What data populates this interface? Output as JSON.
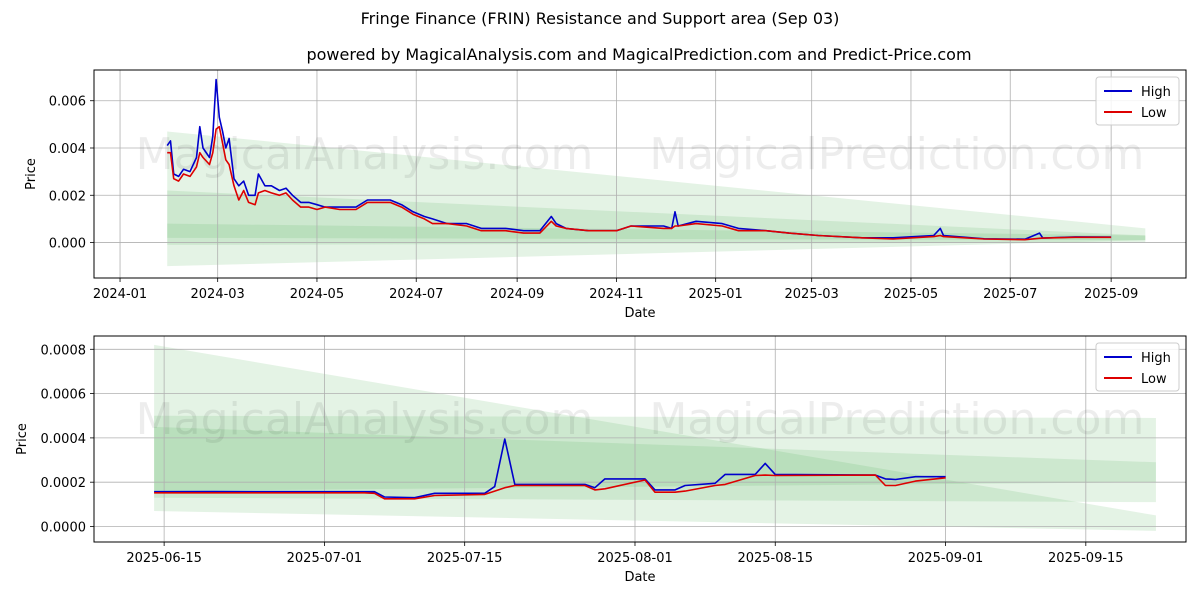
{
  "title": "Fringe Finance (FRIN) Resistance and Support area (Sep 03)",
  "subtitle": "powered by MagicalAnalysis.com and MagicalPrediction.com and Predict-Price.com",
  "watermark": "MagicalAnalysis.com    MagicalPrediction.com",
  "colors": {
    "high": "#0000cc",
    "low": "#dd0000",
    "band": "#4caf50"
  },
  "chart_data": [
    {
      "type": "line",
      "xlabel": "Date",
      "ylabel": "Price",
      "x_tick_labels": [
        "2024-01",
        "2024-03",
        "2024-05",
        "2024-07",
        "2024-09",
        "2024-11",
        "2025-01",
        "2025-03",
        "2025-05",
        "2025-07",
        "2025-09"
      ],
      "y_tick_labels": [
        "0.000",
        "0.002",
        "0.004",
        "0.006"
      ],
      "xlim": [
        "2023-12-16",
        "2025-10-17"
      ],
      "ylim": [
        -0.0015,
        0.0073
      ],
      "legend": {
        "position": "top-right",
        "entries": [
          "High",
          "Low"
        ]
      },
      "grid": true,
      "series": [
        {
          "name": "High",
          "color": "#0000cc",
          "points": [
            [
              "2024-01-30",
              0.0041
            ],
            [
              "2024-02-01",
              0.0043
            ],
            [
              "2024-02-03",
              0.0029
            ],
            [
              "2024-02-06",
              0.0028
            ],
            [
              "2024-02-09",
              0.0031
            ],
            [
              "2024-02-13",
              0.003
            ],
            [
              "2024-02-17",
              0.0036
            ],
            [
              "2024-02-19",
              0.0049
            ],
            [
              "2024-02-21",
              0.004
            ],
            [
              "2024-02-25",
              0.0036
            ],
            [
              "2024-02-27",
              0.0045
            ],
            [
              "2024-02-29",
              0.0069
            ],
            [
              "2024-03-02",
              0.0053
            ],
            [
              "2024-03-04",
              0.0047
            ],
            [
              "2024-03-06",
              0.004
            ],
            [
              "2024-03-08",
              0.0044
            ],
            [
              "2024-03-11",
              0.0027
            ],
            [
              "2024-03-14",
              0.0024
            ],
            [
              "2024-03-17",
              0.0026
            ],
            [
              "2024-03-20",
              0.002
            ],
            [
              "2024-03-24",
              0.002
            ],
            [
              "2024-03-26",
              0.0029
            ],
            [
              "2024-03-30",
              0.0024
            ],
            [
              "2024-04-03",
              0.0024
            ],
            [
              "2024-04-08",
              0.0022
            ],
            [
              "2024-04-12",
              0.0023
            ],
            [
              "2024-04-16",
              0.002
            ],
            [
              "2024-04-21",
              0.0017
            ],
            [
              "2024-04-26",
              0.0017
            ],
            [
              "2024-05-01",
              0.0016
            ],
            [
              "2024-05-06",
              0.0015
            ],
            [
              "2024-05-15",
              0.0015
            ],
            [
              "2024-05-25",
              0.0015
            ],
            [
              "2024-06-01",
              0.0018
            ],
            [
              "2024-06-15",
              0.0018
            ],
            [
              "2024-06-22",
              0.0016
            ],
            [
              "2024-06-29",
              0.0013
            ],
            [
              "2024-07-06",
              0.0011
            ],
            [
              "2024-07-11",
              0.001
            ],
            [
              "2024-07-20",
              0.0008
            ],
            [
              "2024-08-01",
              0.0008
            ],
            [
              "2024-08-10",
              0.0006
            ],
            [
              "2024-08-25",
              0.0006
            ],
            [
              "2024-09-05",
              0.0005
            ],
            [
              "2024-09-15",
              0.0005
            ],
            [
              "2024-09-22",
              0.0011
            ],
            [
              "2024-09-25",
              0.0008
            ],
            [
              "2024-10-01",
              0.0006
            ],
            [
              "2024-10-15",
              0.0005
            ],
            [
              "2024-11-01",
              0.0005
            ],
            [
              "2024-11-10",
              0.0007
            ],
            [
              "2024-11-30",
              0.0007
            ],
            [
              "2024-12-05",
              0.0006
            ],
            [
              "2024-12-07",
              0.0013
            ],
            [
              "2024-12-09",
              0.0007
            ],
            [
              "2024-12-20",
              0.0009
            ],
            [
              "2025-01-05",
              0.0008
            ],
            [
              "2025-01-15",
              0.0006
            ],
            [
              "2025-02-01",
              0.0005
            ],
            [
              "2025-02-15",
              0.0004
            ],
            [
              "2025-03-05",
              0.0003
            ],
            [
              "2025-04-01",
              0.0002
            ],
            [
              "2025-04-20",
              0.0002
            ],
            [
              "2025-05-15",
              0.0003
            ],
            [
              "2025-05-19",
              0.0006
            ],
            [
              "2025-05-21",
              0.0003
            ],
            [
              "2025-06-15",
              0.00016
            ],
            [
              "2025-07-10",
              0.00014
            ],
            [
              "2025-07-19",
              0.0004
            ],
            [
              "2025-07-21",
              0.00019
            ],
            [
              "2025-08-10",
              0.00024
            ],
            [
              "2025-09-01",
              0.00023
            ]
          ]
        },
        {
          "name": "Low",
          "color": "#dd0000",
          "points": [
            [
              "2024-01-30",
              0.0038
            ],
            [
              "2024-02-01",
              0.0038
            ],
            [
              "2024-02-03",
              0.0027
            ],
            [
              "2024-02-06",
              0.0026
            ],
            [
              "2024-02-09",
              0.0029
            ],
            [
              "2024-02-13",
              0.0028
            ],
            [
              "2024-02-17",
              0.0032
            ],
            [
              "2024-02-19",
              0.0038
            ],
            [
              "2024-02-21",
              0.0036
            ],
            [
              "2024-02-25",
              0.0033
            ],
            [
              "2024-02-27",
              0.0038
            ],
            [
              "2024-02-29",
              0.0048
            ],
            [
              "2024-03-02",
              0.0049
            ],
            [
              "2024-03-04",
              0.0042
            ],
            [
              "2024-03-06",
              0.0035
            ],
            [
              "2024-03-08",
              0.0033
            ],
            [
              "2024-03-11",
              0.0024
            ],
            [
              "2024-03-14",
              0.0018
            ],
            [
              "2024-03-17",
              0.0022
            ],
            [
              "2024-03-20",
              0.0017
            ],
            [
              "2024-03-24",
              0.0016
            ],
            [
              "2024-03-26",
              0.0021
            ],
            [
              "2024-03-30",
              0.0022
            ],
            [
              "2024-04-03",
              0.0021
            ],
            [
              "2024-04-08",
              0.002
            ],
            [
              "2024-04-12",
              0.0021
            ],
            [
              "2024-04-16",
              0.0018
            ],
            [
              "2024-04-21",
              0.0015
            ],
            [
              "2024-04-26",
              0.0015
            ],
            [
              "2024-05-01",
              0.0014
            ],
            [
              "2024-05-06",
              0.0015
            ],
            [
              "2024-05-15",
              0.0014
            ],
            [
              "2024-05-25",
              0.0014
            ],
            [
              "2024-06-01",
              0.0017
            ],
            [
              "2024-06-15",
              0.0017
            ],
            [
              "2024-06-22",
              0.0015
            ],
            [
              "2024-06-29",
              0.0012
            ],
            [
              "2024-07-06",
              0.001
            ],
            [
              "2024-07-11",
              0.0008
            ],
            [
              "2024-07-20",
              0.0008
            ],
            [
              "2024-08-01",
              0.0007
            ],
            [
              "2024-08-10",
              0.0005
            ],
            [
              "2024-08-25",
              0.0005
            ],
            [
              "2024-09-05",
              0.0004
            ],
            [
              "2024-09-15",
              0.0004
            ],
            [
              "2024-09-22",
              0.0009
            ],
            [
              "2024-09-25",
              0.0007
            ],
            [
              "2024-10-01",
              0.0006
            ],
            [
              "2024-10-15",
              0.0005
            ],
            [
              "2024-11-01",
              0.0005
            ],
            [
              "2024-11-10",
              0.0007
            ],
            [
              "2024-11-30",
              0.0006
            ],
            [
              "2024-12-05",
              0.0006
            ],
            [
              "2024-12-07",
              0.0007
            ],
            [
              "2024-12-09",
              0.0007
            ],
            [
              "2024-12-20",
              0.0008
            ],
            [
              "2025-01-05",
              0.0007
            ],
            [
              "2025-01-15",
              0.0005
            ],
            [
              "2025-02-01",
              0.0005
            ],
            [
              "2025-02-15",
              0.0004
            ],
            [
              "2025-03-05",
              0.0003
            ],
            [
              "2025-04-01",
              0.0002
            ],
            [
              "2025-04-20",
              0.00015
            ],
            [
              "2025-05-15",
              0.00025
            ],
            [
              "2025-05-19",
              0.0003
            ],
            [
              "2025-05-21",
              0.00025
            ],
            [
              "2025-06-15",
              0.00015
            ],
            [
              "2025-07-10",
              0.00012
            ],
            [
              "2025-07-19",
              0.00018
            ],
            [
              "2025-07-21",
              0.00019
            ],
            [
              "2025-08-10",
              0.00022
            ],
            [
              "2025-09-01",
              0.00022
            ]
          ]
        }
      ],
      "bands": [
        {
          "x": [
            "2024-01-30",
            "2025-09-22"
          ],
          "upper": [
            0.0047,
            0.0006
          ],
          "lower": [
            0.0002,
            0.0001
          ]
        },
        {
          "x": [
            "2024-01-30",
            "2025-09-22"
          ],
          "upper": [
            0.0022,
            0.0003
          ],
          "lower": [
            -0.001,
            0.0001
          ]
        },
        {
          "x": [
            "2024-01-30",
            "2025-09-22"
          ],
          "upper": [
            0.0008,
            0.0003
          ],
          "lower": [
            -0.0001,
            0.0
          ]
        }
      ]
    },
    {
      "type": "line",
      "xlabel": "Date",
      "ylabel": "Price",
      "x_tick_labels": [
        "2025-06-15",
        "2025-07-01",
        "2025-07-15",
        "2025-08-01",
        "2025-08-15",
        "2025-09-01",
        "2025-09-15"
      ],
      "y_tick_labels": [
        "0.0000",
        "0.0002",
        "0.0004",
        "0.0006",
        "0.0008"
      ],
      "xlim": [
        "2025-06-08",
        "2025-09-25"
      ],
      "ylim": [
        -7e-05,
        0.00086
      ],
      "legend": {
        "position": "top-right",
        "entries": [
          "High",
          "Low"
        ]
      },
      "grid": true,
      "series": [
        {
          "name": "High",
          "color": "#0000cc",
          "points": [
            [
              "2025-06-14",
              0.000157
            ],
            [
              "2025-06-20",
              0.000158
            ],
            [
              "2025-06-25",
              0.000157
            ],
            [
              "2025-07-05",
              0.000157
            ],
            [
              "2025-07-06",
              0.000157
            ],
            [
              "2025-07-07",
              0.000133
            ],
            [
              "2025-07-10",
              0.00013
            ],
            [
              "2025-07-12",
              0.00015
            ],
            [
              "2025-07-17",
              0.00015
            ],
            [
              "2025-07-18",
              0.00018
            ],
            [
              "2025-07-19",
              0.000395
            ],
            [
              "2025-07-20",
              0.00019
            ],
            [
              "2025-07-27",
              0.00019
            ],
            [
              "2025-07-28",
              0.000175
            ],
            [
              "2025-07-29",
              0.000215
            ],
            [
              "2025-08-02",
              0.000215
            ],
            [
              "2025-08-03",
              0.000165
            ],
            [
              "2025-08-05",
              0.000165
            ],
            [
              "2025-08-06",
              0.000185
            ],
            [
              "2025-08-09",
              0.000195
            ],
            [
              "2025-08-10",
              0.000235
            ],
            [
              "2025-08-13",
              0.000235
            ],
            [
              "2025-08-14",
              0.000285
            ],
            [
              "2025-08-15",
              0.000235
            ],
            [
              "2025-08-25",
              0.000232
            ],
            [
              "2025-08-26",
              0.000215
            ],
            [
              "2025-08-27",
              0.000212
            ],
            [
              "2025-08-29",
              0.000225
            ],
            [
              "2025-09-01",
              0.000225
            ]
          ]
        },
        {
          "name": "Low",
          "color": "#dd0000",
          "points": [
            [
              "2025-06-14",
              0.000152
            ],
            [
              "2025-06-20",
              0.000152
            ],
            [
              "2025-06-25",
              0.000152
            ],
            [
              "2025-07-05",
              0.000152
            ],
            [
              "2025-07-06",
              0.00015
            ],
            [
              "2025-07-07",
              0.000125
            ],
            [
              "2025-07-10",
              0.000125
            ],
            [
              "2025-07-12",
              0.00014
            ],
            [
              "2025-07-17",
              0.000145
            ],
            [
              "2025-07-18",
              0.00016
            ],
            [
              "2025-07-19",
              0.000175
            ],
            [
              "2025-07-20",
              0.000185
            ],
            [
              "2025-07-27",
              0.000185
            ],
            [
              "2025-07-28",
              0.000165
            ],
            [
              "2025-07-29",
              0.00017
            ],
            [
              "2025-08-02",
              0.00021
            ],
            [
              "2025-08-03",
              0.000155
            ],
            [
              "2025-08-05",
              0.000155
            ],
            [
              "2025-08-06",
              0.00016
            ],
            [
              "2025-08-09",
              0.000185
            ],
            [
              "2025-08-10",
              0.00019
            ],
            [
              "2025-08-13",
              0.00023
            ],
            [
              "2025-08-14",
              0.000232
            ],
            [
              "2025-08-15",
              0.00023
            ],
            [
              "2025-08-25",
              0.000232
            ],
            [
              "2025-08-26",
              0.000185
            ],
            [
              "2025-08-27",
              0.000185
            ],
            [
              "2025-08-29",
              0.000205
            ],
            [
              "2025-09-01",
              0.00022
            ]
          ]
        }
      ],
      "bands": [
        {
          "x": [
            "2025-06-14",
            "2025-09-22"
          ],
          "upper": [
            0.00082,
            5e-05
          ],
          "lower": [
            7e-05,
            -2e-05
          ]
        },
        {
          "x": [
            "2025-06-14",
            "2025-09-22"
          ],
          "upper": [
            0.0005,
            0.00049
          ],
          "lower": [
            0.00013,
            0.00011
          ]
        },
        {
          "x": [
            "2025-06-14",
            "2025-09-22"
          ],
          "upper": [
            0.00045,
            0.00029
          ],
          "lower": [
            0.00016,
            0.0002
          ]
        }
      ]
    }
  ]
}
